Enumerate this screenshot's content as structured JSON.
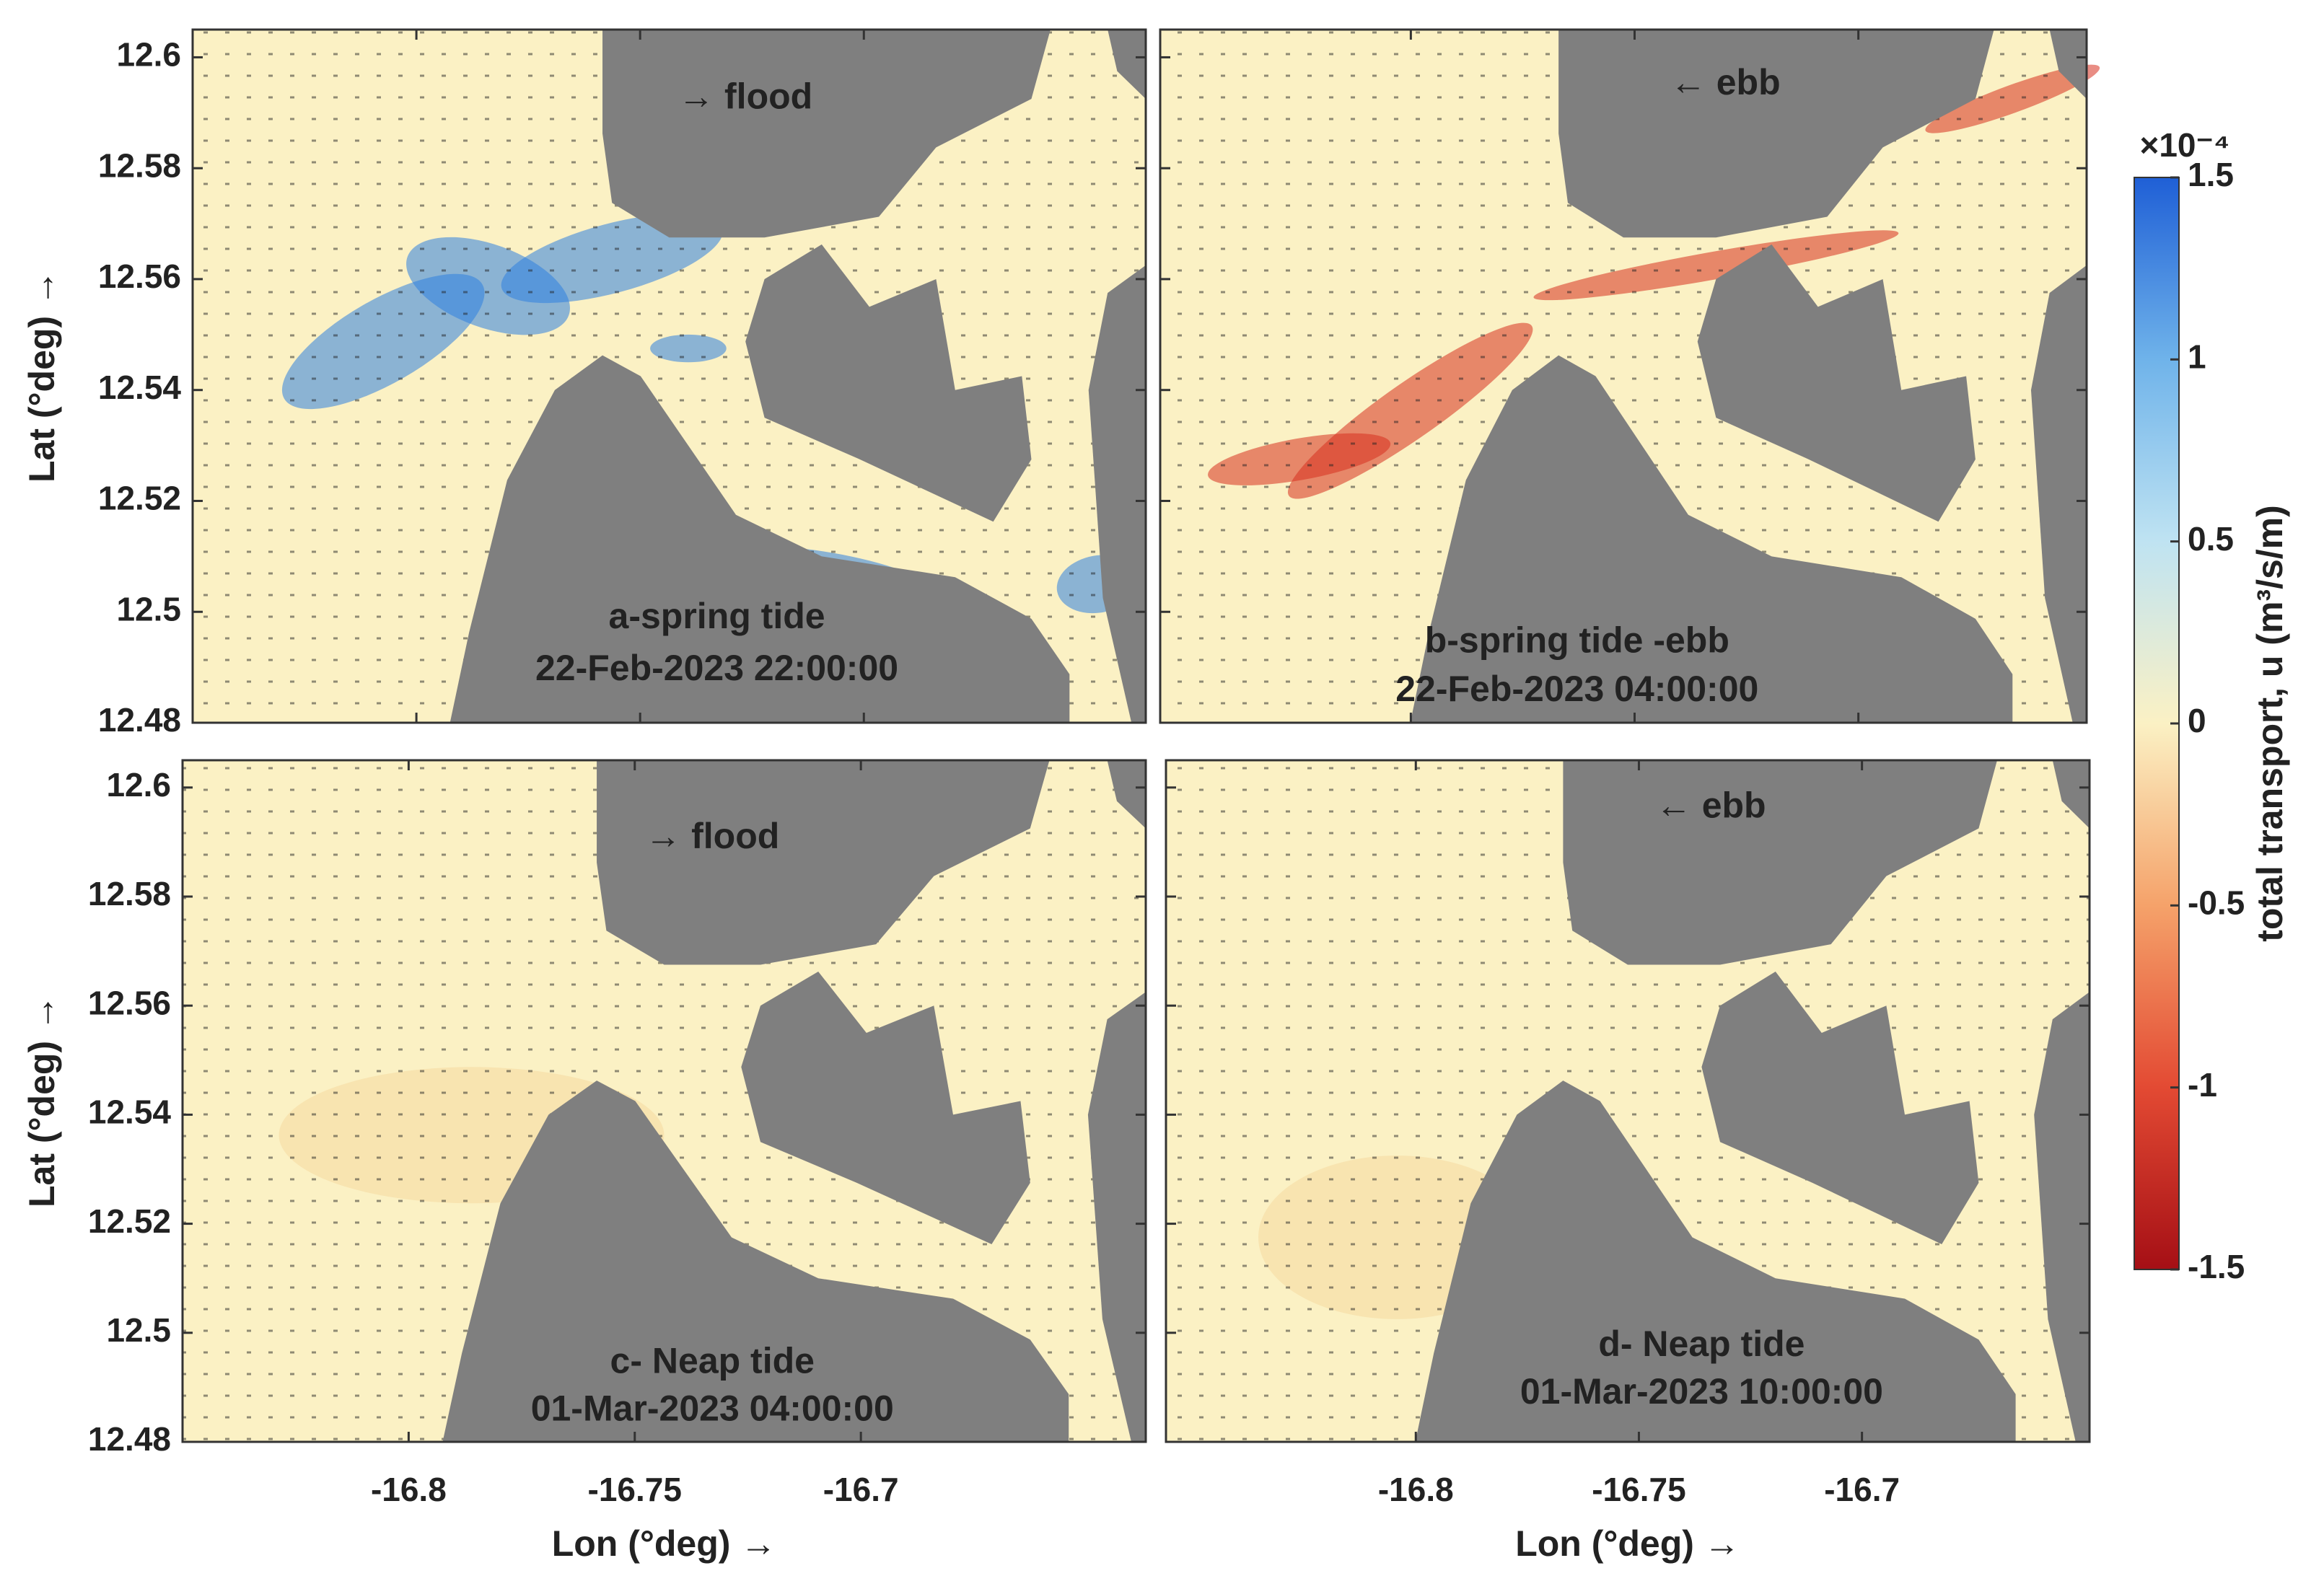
{
  "chart_data": [
    {
      "type": "map",
      "xlim": [
        -16.85,
        -16.637
      ],
      "ylim": [
        12.48,
        12.605
      ],
      "xticks": [
        -16.8,
        -16.75,
        -16.7
      ],
      "yticks": [
        12.48,
        12.5,
        12.52,
        12.54,
        12.56,
        12.58,
        12.6
      ],
      "show_xticklabels": false,
      "show_yticklabels": true,
      "ylabel": "Lat  (°deg) →",
      "flow_label": "→ flood",
      "panel_label": "a-spring tide",
      "time": "22-Feb-2023 22:00:00",
      "plume_color": "#2f7fe0"
    },
    {
      "type": "map",
      "xlim": [
        -16.856,
        -16.649
      ],
      "ylim": [
        12.48,
        12.605
      ],
      "xticks": [
        -16.8,
        -16.75,
        -16.7
      ],
      "yticks": [
        12.48,
        12.5,
        12.52,
        12.54,
        12.56,
        12.58,
        12.6
      ],
      "show_xticklabels": false,
      "show_yticklabels": false,
      "flow_label": "← ebb",
      "panel_label": "b-spring tide -ebb",
      "time": "22-Feb-2023 04:00:00",
      "plume_color": "#d7301f"
    },
    {
      "type": "map",
      "xlim": [
        -16.85,
        -16.637
      ],
      "ylim": [
        12.48,
        12.605
      ],
      "xticks": [
        -16.8,
        -16.75,
        -16.7
      ],
      "yticks": [
        12.48,
        12.5,
        12.52,
        12.54,
        12.56,
        12.58,
        12.6
      ],
      "show_xticklabels": true,
      "show_yticklabels": true,
      "xlabel": "Lon (°deg) →",
      "ylabel": "Lat  (°deg) →",
      "flow_label": "→ flood",
      "panel_label": "c- Neap tide",
      "time": "01-Mar-2023 04:00:00",
      "plume_color": "#f6d9a0"
    },
    {
      "type": "map",
      "xlim": [
        -16.856,
        -16.649
      ],
      "ylim": [
        12.48,
        12.605
      ],
      "xticks": [
        -16.8,
        -16.75,
        -16.7
      ],
      "yticks": [
        12.48,
        12.5,
        12.52,
        12.54,
        12.56,
        12.58,
        12.6
      ],
      "show_xticklabels": true,
      "show_yticklabels": false,
      "xlabel": "Lon (°deg) →",
      "flow_label": "← ebb",
      "panel_label": "d- Neap tide",
      "time": "01-Mar-2023 10:00:00",
      "plume_color": "#f6d9a0"
    },
    {
      "type": "colorbar",
      "ylim": [
        -1.5,
        1.5
      ],
      "yticks": [
        -1.5,
        -1,
        -0.5,
        0,
        0.5,
        1,
        1.5
      ],
      "ylabel": "total transport, u (m³/s/m)",
      "multiplier": "×10⁻⁴",
      "colors": [
        "#a50f15",
        "#e34a33",
        "#f5a26a",
        "#fbf1c4",
        "#bfe3f2",
        "#6fb3ea",
        "#1f5fd6"
      ]
    }
  ]
}
